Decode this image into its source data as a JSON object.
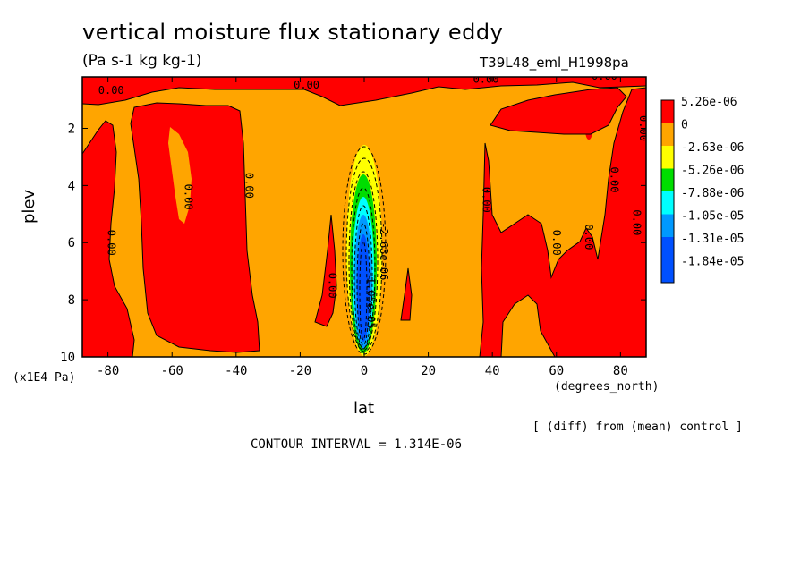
{
  "chart_data": {
    "type": "heatmap",
    "title": "vertical moisture flux stationary eddy",
    "units": "(Pa s-1 kg kg-1)",
    "run_id": "T39L48_eml_H1998pa",
    "xlabel": "lat",
    "xunits": "(degrees_north)",
    "ylabel": "plev",
    "yunits": "(x1E4 Pa)",
    "xlim": [
      -88,
      88
    ],
    "ylim": [
      10,
      0.2
    ],
    "x_ticks": [
      -80,
      -60,
      -40,
      -20,
      0,
      20,
      40,
      60,
      80
    ],
    "x_tick_labels": [
      "-80",
      "-60",
      "-40",
      "-20",
      "0",
      "20",
      "40",
      "60",
      "80"
    ],
    "y_ticks": [
      2,
      4,
      6,
      8,
      10
    ],
    "y_tick_labels": [
      "2",
      "4",
      "6",
      "8",
      "10"
    ],
    "note": "[ (diff) from (mean) control ]",
    "contour_interval": "CONTOUR INTERVAL = 1.314E-06",
    "legend": [
      {
        "label": "5.26e-06",
        "color": "#ff0000"
      },
      {
        "label": "0",
        "color": "#ffa500"
      },
      {
        "label": "-2.63e-06",
        "color": "#ffff00"
      },
      {
        "label": "-5.26e-06",
        "color": "#00dd00"
      },
      {
        "label": "-7.88e-06",
        "color": "#00ffff"
      },
      {
        "label": "-1.05e-05",
        "color": "#0099ff"
      },
      {
        "label": "-1.31e-05",
        "color": "#0050ff"
      },
      {
        "label": "-1.84e-05",
        "color": "#0050ff"
      }
    ],
    "contour_labels": [
      {
        "text": "0.00",
        "x": -79,
        "y": 0.8
      },
      {
        "text": "0.00",
        "x": -56,
        "y": 4.4
      },
      {
        "text": "0.00",
        "x": -37,
        "y": 4.0
      },
      {
        "text": "0.00",
        "x": -80,
        "y": 6.0
      },
      {
        "text": "0.00",
        "x": -18,
        "y": 0.6
      },
      {
        "text": "0.00",
        "x": -11,
        "y": 7.5
      },
      {
        "text": "0.00",
        "x": 38,
        "y": 0.4
      },
      {
        "text": "0.00",
        "x": 37,
        "y": 4.5
      },
      {
        "text": "0.00",
        "x": 59,
        "y": 6.0
      },
      {
        "text": "0.00",
        "x": 69,
        "y": 5.8
      },
      {
        "text": "0.00",
        "x": 75,
        "y": 0.3
      },
      {
        "text": "0.00",
        "x": 77,
        "y": 3.8
      },
      {
        "text": "0.00",
        "x": 84,
        "y": 5.3
      },
      {
        "text": "0.00",
        "x": 86,
        "y": 2.0
      },
      {
        "text": "-2.63e-06",
        "x": 5,
        "y": 6.3
      },
      {
        "text": "-1.05e-05",
        "x": 1,
        "y": 8.0
      }
    ],
    "grid": false
  }
}
